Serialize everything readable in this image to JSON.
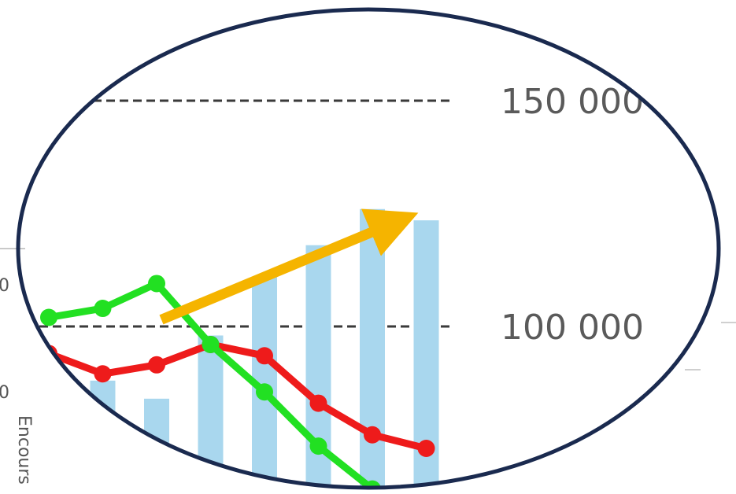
{
  "chart_data": {
    "type": "bar",
    "y_ticks": [
      {
        "value": 150000,
        "label": "150 000"
      },
      {
        "value": 100000,
        "label": "100 000"
      }
    ],
    "bars": [
      88000,
      84000,
      98000,
      111000,
      118000,
      126000,
      123500
    ],
    "series": [
      {
        "color": "#ee1b1b",
        "values": [
          94000,
          89500,
          91500,
          96000,
          93500,
          83000,
          76000,
          73000
        ]
      },
      {
        "color": "#22e022",
        "values": [
          102000,
          104000,
          109500,
          96000,
          85500,
          73500,
          64000
        ]
      }
    ],
    "trend_arrow": {
      "color": "#f5b400",
      "from": 101500,
      "to": 125000
    },
    "grid": true,
    "ylim": [
      60000,
      155000
    ],
    "ellipse_border": "#1a2a4f",
    "bar_color": "#a9d7ee"
  },
  "side_label": "Encours"
}
